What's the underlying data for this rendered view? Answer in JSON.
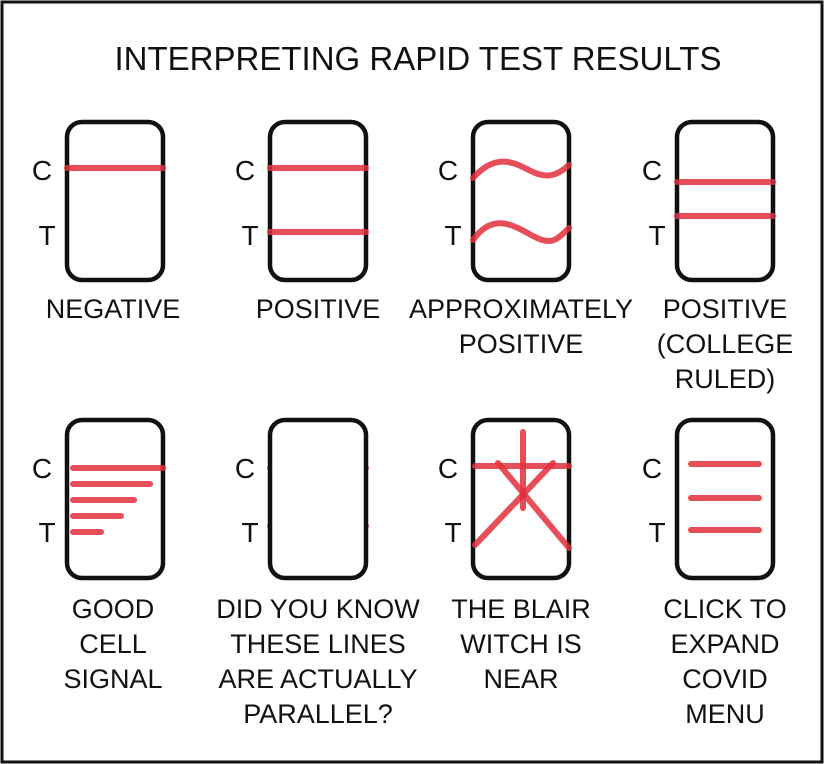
{
  "title": "INTERPRETING RAPID TEST RESULTS",
  "strip_labels": {
    "control": "C",
    "test": "T"
  },
  "colors": {
    "line": "#e2303c",
    "ink": "#111111",
    "rays": "#aaaaaa"
  },
  "panels": [
    {
      "caption": [
        "NEGATIVE"
      ]
    },
    {
      "caption": [
        "POSITIVE"
      ]
    },
    {
      "caption": [
        "APPROXIMATELY",
        "POSITIVE"
      ]
    },
    {
      "caption": [
        "POSITIVE",
        "(COLLEGE",
        "RULED)"
      ]
    },
    {
      "caption": [
        "GOOD",
        "CELL",
        "SIGNAL"
      ]
    },
    {
      "caption": [
        "DID YOU KNOW",
        "THESE LINES",
        "ARE ACTUALLY",
        "PARALLEL?"
      ]
    },
    {
      "caption": [
        "THE BLAIR",
        "WITCH IS",
        "NEAR"
      ]
    },
    {
      "caption": [
        "CLICK TO",
        "EXPAND",
        "COVID",
        "MENU"
      ]
    }
  ]
}
